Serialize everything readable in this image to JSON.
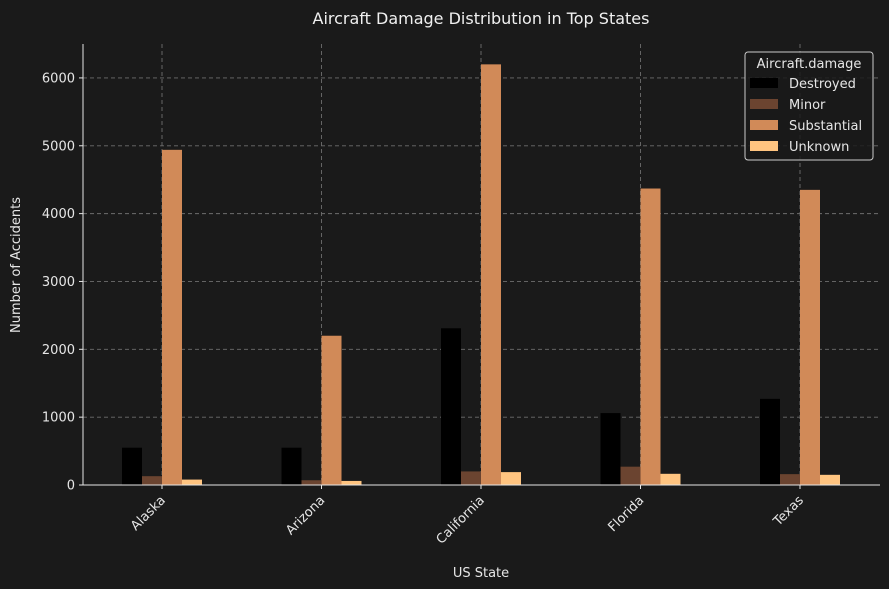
{
  "chart_data": {
    "type": "bar",
    "title": "Aircraft Damage Distribution in Top States",
    "xlabel": "US State",
    "ylabel": "Number of Accidents",
    "categories": [
      "Alaska",
      "Arizona",
      "California",
      "Florida",
      "Texas"
    ],
    "ylim": [
      0,
      6500
    ],
    "yticks": [
      0,
      1000,
      2000,
      3000,
      4000,
      5000,
      6000
    ],
    "grid": true,
    "legend": {
      "title": "Aircraft.damage",
      "position": "top-right"
    },
    "series": [
      {
        "name": "Destroyed",
        "color": "#000000",
        "values": [
          550,
          550,
          2310,
          1060,
          1270
        ]
      },
      {
        "name": "Minor",
        "color": "#6b4430",
        "values": [
          130,
          70,
          200,
          270,
          160
        ]
      },
      {
        "name": "Substantial",
        "color": "#d18a58",
        "values": [
          4940,
          2200,
          6200,
          4370,
          4350
        ]
      },
      {
        "name": "Unknown",
        "color": "#ffc480",
        "values": [
          80,
          60,
          190,
          165,
          150
        ]
      }
    ]
  }
}
